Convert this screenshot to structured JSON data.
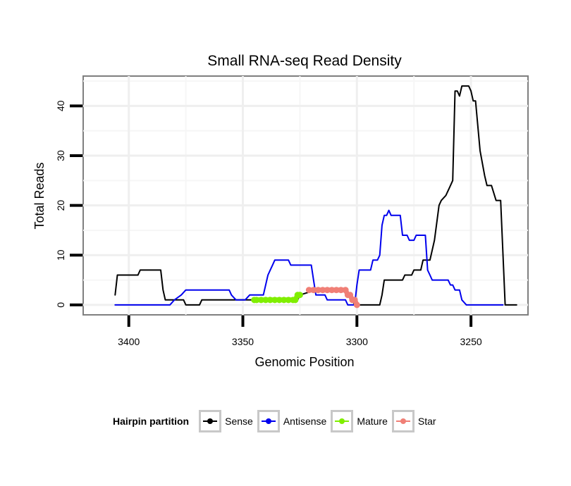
{
  "chart_data": {
    "type": "line",
    "title": "Small RNA-seq Read Density",
    "xlabel": "Genomic Position",
    "ylabel": "Total Reads",
    "xlim": [
      3420,
      3225
    ],
    "ylim": [
      -2,
      46
    ],
    "x_reversed": true,
    "grid": true,
    "xticks": [
      3400,
      3350,
      3300,
      3250
    ],
    "xtick_labels": [
      "3400",
      "3350",
      "3300",
      "3250"
    ],
    "yticks": [
      0,
      10,
      20,
      30,
      40
    ],
    "ytick_labels": [
      "0",
      "10",
      "20",
      "30",
      "40"
    ],
    "legend": {
      "title": "Hairpin partition",
      "position": "bottom",
      "entries": [
        "Sense",
        "Antisense",
        "Mature",
        "Star"
      ]
    },
    "series": [
      {
        "name": "Sense",
        "color": "#000000",
        "points": [
          [
            3406,
            2
          ],
          [
            3405,
            6
          ],
          [
            3396,
            6
          ],
          [
            3395,
            7
          ],
          [
            3386,
            7
          ],
          [
            3385,
            3
          ],
          [
            3384,
            1
          ],
          [
            3376,
            1
          ],
          [
            3375,
            0
          ],
          [
            3369,
            0
          ],
          [
            3368,
            1
          ],
          [
            3350,
            1
          ],
          [
            3345,
            1
          ],
          [
            3344,
            1
          ],
          [
            3326,
            1
          ],
          [
            3325,
            2
          ],
          [
            3318,
            3
          ],
          [
            3305,
            3
          ],
          [
            3304,
            2
          ],
          [
            3302,
            1
          ],
          [
            3301,
            0
          ],
          [
            3290,
            0
          ],
          [
            3289,
            2
          ],
          [
            3288,
            5
          ],
          [
            3280,
            5
          ],
          [
            3279,
            6
          ],
          [
            3276,
            6
          ],
          [
            3275,
            7
          ],
          [
            3272,
            7
          ],
          [
            3271,
            9
          ],
          [
            3268,
            9
          ],
          [
            3266,
            13
          ],
          [
            3264,
            20
          ],
          [
            3263,
            21
          ],
          [
            3261,
            22
          ],
          [
            3259,
            24
          ],
          [
            3258,
            25
          ],
          [
            3257,
            43
          ],
          [
            3256,
            43
          ],
          [
            3255,
            42
          ],
          [
            3254,
            44
          ],
          [
            3251,
            44
          ],
          [
            3250,
            43
          ],
          [
            3249,
            41
          ],
          [
            3248,
            41
          ],
          [
            3246,
            31
          ],
          [
            3244,
            26
          ],
          [
            3243,
            24
          ],
          [
            3241,
            24
          ],
          [
            3239,
            21
          ],
          [
            3237,
            21
          ],
          [
            3235,
            0
          ],
          [
            3230,
            0
          ]
        ]
      },
      {
        "name": "Antisense",
        "color": "#0000ee",
        "points": [
          [
            3406,
            0
          ],
          [
            3382,
            0
          ],
          [
            3380,
            1
          ],
          [
            3377,
            2
          ],
          [
            3375,
            3
          ],
          [
            3356,
            3
          ],
          [
            3355,
            2
          ],
          [
            3353,
            1
          ],
          [
            3349,
            1
          ],
          [
            3347,
            2
          ],
          [
            3341,
            2
          ],
          [
            3339,
            6
          ],
          [
            3337,
            8
          ],
          [
            3336,
            9
          ],
          [
            3330,
            9
          ],
          [
            3329,
            8
          ],
          [
            3320,
            8
          ],
          [
            3319,
            5
          ],
          [
            3318,
            2
          ],
          [
            3314,
            2
          ],
          [
            3313,
            1
          ],
          [
            3305,
            1
          ],
          [
            3304,
            0
          ],
          [
            3301,
            0
          ],
          [
            3300,
            4
          ],
          [
            3299,
            7
          ],
          [
            3294,
            7
          ],
          [
            3293,
            9
          ],
          [
            3291,
            9
          ],
          [
            3290,
            10
          ],
          [
            3289,
            16
          ],
          [
            3288,
            18
          ],
          [
            3287,
            18
          ],
          [
            3286,
            19
          ],
          [
            3285,
            18
          ],
          [
            3281,
            18
          ],
          [
            3280,
            14
          ],
          [
            3278,
            14
          ],
          [
            3277,
            13
          ],
          [
            3275,
            13
          ],
          [
            3274,
            14
          ],
          [
            3270,
            14
          ],
          [
            3269,
            7
          ],
          [
            3268,
            6
          ],
          [
            3267,
            5
          ],
          [
            3260,
            5
          ],
          [
            3259,
            4
          ],
          [
            3258,
            4
          ],
          [
            3257,
            3
          ],
          [
            3255,
            3
          ],
          [
            3254,
            1
          ],
          [
            3252,
            0
          ],
          [
            3236,
            0
          ]
        ]
      },
      {
        "name": "Mature",
        "color": "#80ee00",
        "points": [
          [
            3345,
            1
          ],
          [
            3344,
            1
          ],
          [
            3342,
            1
          ],
          [
            3340,
            1
          ],
          [
            3338,
            1
          ],
          [
            3336,
            1
          ],
          [
            3334,
            1
          ],
          [
            3332,
            1
          ],
          [
            3330,
            1
          ],
          [
            3328,
            1
          ],
          [
            3327,
            1
          ],
          [
            3326,
            2
          ],
          [
            3325,
            2
          ]
        ]
      },
      {
        "name": "Star",
        "color": "#f07f76",
        "points": [
          [
            3321,
            3
          ],
          [
            3319,
            3
          ],
          [
            3317,
            3
          ],
          [
            3315,
            3
          ],
          [
            3313,
            3
          ],
          [
            3311,
            3
          ],
          [
            3309,
            3
          ],
          [
            3307,
            3
          ],
          [
            3305,
            3
          ],
          [
            3304,
            2
          ],
          [
            3303,
            2
          ],
          [
            3302,
            1
          ],
          [
            3301,
            1
          ],
          [
            3300,
            0
          ]
        ]
      }
    ]
  }
}
